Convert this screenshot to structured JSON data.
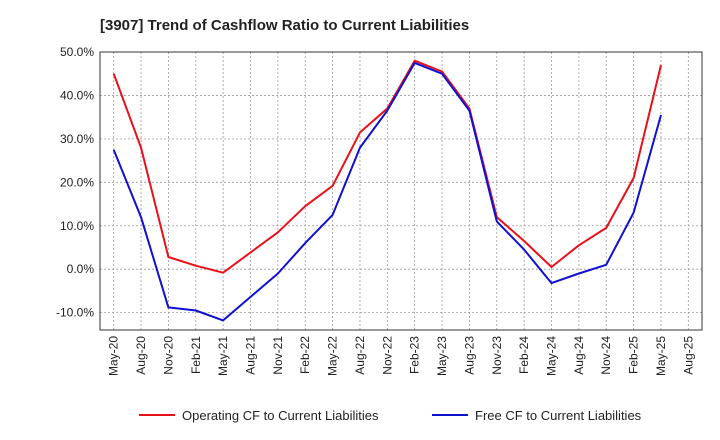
{
  "chart_data": {
    "type": "line",
    "title": "[3907]  Trend of Cashflow Ratio to Current Liabilities",
    "xlabel": "",
    "ylabel": "",
    "x_ticks": [
      "May-20",
      "Aug-20",
      "Nov-20",
      "Feb-21",
      "May-21",
      "Aug-21",
      "Nov-21",
      "Feb-22",
      "May-22",
      "Aug-22",
      "Nov-22",
      "Feb-23",
      "May-23",
      "Aug-23",
      "Nov-23",
      "Feb-24",
      "May-24",
      "Aug-24",
      "Nov-24",
      "Feb-25",
      "May-25",
      "Aug-25"
    ],
    "y_ticks": [
      "50.0%",
      "40.0%",
      "30.0%",
      "20.0%",
      "10.0%",
      "0.0%",
      "-10.0%"
    ],
    "y_tick_values": [
      50,
      40,
      30,
      20,
      10,
      0,
      -10
    ],
    "ylim": [
      -14,
      50
    ],
    "grid": true,
    "legend_position": "bottom",
    "series": [
      {
        "name": "Operating CF to Current Liabilities",
        "color": "#e8111b",
        "points": [
          [
            "May-20",
            45.0
          ],
          [
            "Aug-20",
            28.0
          ],
          [
            "Nov-20",
            2.8
          ],
          [
            "Feb-21",
            0.8
          ],
          [
            "May-21",
            -0.8
          ],
          [
            "Nov-21",
            8.5
          ],
          [
            "Feb-22",
            14.5
          ],
          [
            "May-22",
            19.2
          ],
          [
            "Aug-22",
            31.5
          ],
          [
            "Nov-22",
            37.0
          ],
          [
            "Feb-23",
            48.0
          ],
          [
            "May-23",
            45.5
          ],
          [
            "Aug-23",
            37.0
          ],
          [
            "Nov-23",
            12.0
          ],
          [
            "Feb-24",
            6.5
          ],
          [
            "May-24",
            0.5
          ],
          [
            "Aug-24",
            5.5
          ],
          [
            "Nov-24",
            9.5
          ],
          [
            "Feb-25",
            21.0
          ],
          [
            "May-25",
            47.0
          ]
        ]
      },
      {
        "name": "Free CF to Current Liabilities",
        "color": "#1010d0",
        "points": [
          [
            "May-20",
            27.5
          ],
          [
            "Aug-20",
            12.0
          ],
          [
            "Nov-20",
            -8.8
          ],
          [
            "Feb-21",
            -9.5
          ],
          [
            "May-21",
            -11.8
          ],
          [
            "Nov-21",
            -1.0
          ],
          [
            "Feb-22",
            6.0
          ],
          [
            "May-22",
            12.5
          ],
          [
            "Aug-22",
            28.0
          ],
          [
            "Nov-22",
            36.5
          ],
          [
            "Feb-23",
            47.5
          ],
          [
            "May-23",
            45.0
          ],
          [
            "Aug-23",
            36.5
          ],
          [
            "Nov-23",
            11.0
          ],
          [
            "Feb-24",
            4.5
          ],
          [
            "May-24",
            -3.2
          ],
          [
            "Aug-24",
            -1.0
          ],
          [
            "Nov-24",
            1.0
          ],
          [
            "Feb-25",
            13.0
          ],
          [
            "May-25",
            35.5
          ]
        ]
      }
    ]
  }
}
